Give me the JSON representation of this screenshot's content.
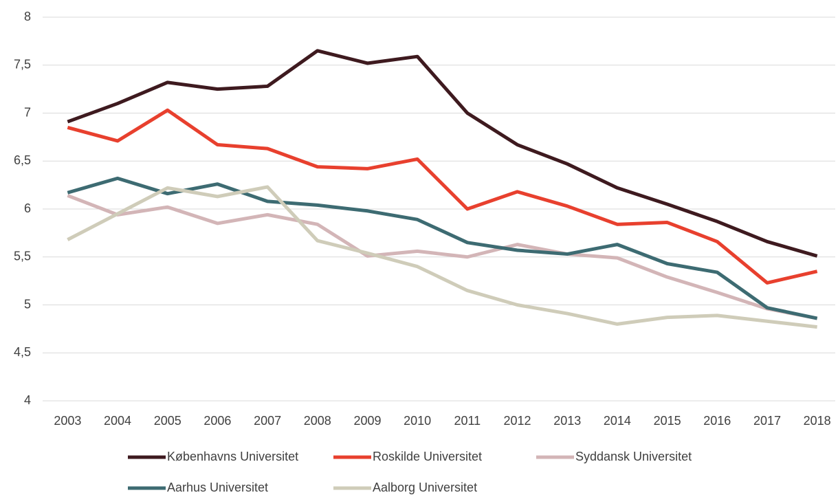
{
  "chart_data": {
    "type": "line",
    "categories": [
      "2003",
      "2004",
      "2005",
      "2006",
      "2007",
      "2008",
      "2009",
      "2010",
      "2011",
      "2012",
      "2013",
      "2014",
      "2015",
      "2016",
      "2017",
      "2018"
    ],
    "series": [
      {
        "name": "Københavns Universitet",
        "color": "#3e1a1f",
        "values": [
          6.91,
          7.1,
          7.32,
          7.25,
          7.28,
          7.65,
          7.52,
          7.59,
          7.0,
          6.67,
          6.47,
          6.22,
          6.05,
          5.87,
          5.66,
          5.51
        ]
      },
      {
        "name": "Roskilde Universitet",
        "color": "#e8402e",
        "values": [
          6.85,
          6.71,
          7.03,
          6.67,
          6.63,
          6.44,
          6.42,
          6.52,
          6.0,
          6.18,
          6.03,
          5.84,
          5.86,
          5.66,
          5.23,
          5.35
        ]
      },
      {
        "name": "Syddansk Universitet",
        "color": "#d3b5b7",
        "values": [
          6.14,
          5.94,
          6.02,
          5.85,
          5.94,
          5.84,
          5.51,
          5.56,
          5.5,
          5.63,
          5.53,
          5.49,
          5.29,
          5.13,
          4.96,
          4.86
        ]
      },
      {
        "name": "Aarhus Universitet",
        "color": "#3d6b72",
        "values": [
          6.17,
          6.32,
          6.16,
          6.26,
          6.08,
          6.04,
          5.98,
          5.89,
          5.65,
          5.57,
          5.53,
          5.63,
          5.43,
          5.34,
          4.97,
          4.86
        ]
      },
      {
        "name": "Aalborg Universitet",
        "color": "#cfccb9",
        "values": [
          5.68,
          5.95,
          6.22,
          6.13,
          6.23,
          5.67,
          5.54,
          5.4,
          5.15,
          5.0,
          4.91,
          4.8,
          4.87,
          4.89,
          4.83,
          4.77
        ]
      }
    ],
    "ylim": [
      4,
      8
    ],
    "yticks": [
      4,
      {
        "value": 4.5,
        "label": "4,5"
      },
      5,
      {
        "value": 5.5,
        "label": "5,5"
      },
      6,
      {
        "value": 6.5,
        "label": "6,5"
      },
      7,
      {
        "value": 7.5,
        "label": "7,5"
      },
      8
    ],
    "grid": true,
    "legend": "bottom"
  }
}
